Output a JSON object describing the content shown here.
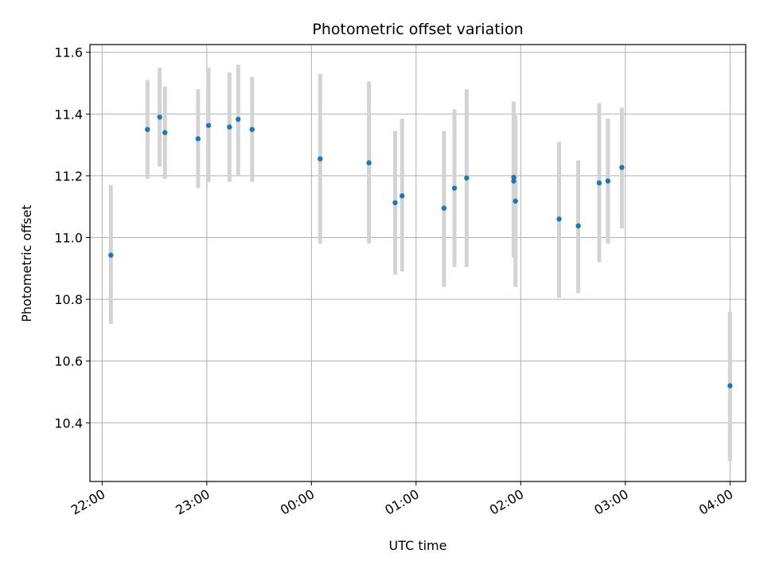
{
  "chart_data": {
    "type": "scatter",
    "title": "Photometric offset variation",
    "xlabel": "UTC time",
    "ylabel": "Photometric offset",
    "x_tick_labels": [
      "22:00",
      "23:00",
      "00:00",
      "01:00",
      "02:00",
      "03:00",
      "04:00"
    ],
    "xlim": [
      "21:53",
      "04:09"
    ],
    "ylim": [
      10.21,
      11.625
    ],
    "y_ticks": [
      "10.4",
      "10.6",
      "10.8",
      "11.0",
      "11.2",
      "11.4",
      "11.6"
    ],
    "grid": true,
    "marker_color": "#1f77b4",
    "errorbar_color": "#d3d3d3",
    "points": [
      {
        "t": "22:05",
        "y": 10.943,
        "lo": 10.72,
        "hi": 11.17
      },
      {
        "t": "22:26",
        "y": 11.35,
        "lo": 11.19,
        "hi": 11.51
      },
      {
        "t": "22:33",
        "y": 11.39,
        "lo": 11.23,
        "hi": 11.55
      },
      {
        "t": "22:36",
        "y": 11.34,
        "lo": 11.19,
        "hi": 11.49
      },
      {
        "t": "22:55",
        "y": 11.32,
        "lo": 11.16,
        "hi": 11.48
      },
      {
        "t": "23:01",
        "y": 11.363,
        "lo": 11.18,
        "hi": 11.55
      },
      {
        "t": "23:13",
        "y": 11.358,
        "lo": 11.18,
        "hi": 11.535
      },
      {
        "t": "23:18",
        "y": 11.383,
        "lo": 11.2,
        "hi": 11.56
      },
      {
        "t": "23:26",
        "y": 11.35,
        "lo": 11.18,
        "hi": 11.52
      },
      {
        "t": "00:05",
        "y": 11.255,
        "lo": 10.98,
        "hi": 11.53
      },
      {
        "t": "00:33",
        "y": 11.242,
        "lo": 10.98,
        "hi": 11.505
      },
      {
        "t": "00:48",
        "y": 11.113,
        "lo": 10.88,
        "hi": 11.345
      },
      {
        "t": "00:52",
        "y": 11.135,
        "lo": 10.89,
        "hi": 11.385
      },
      {
        "t": "01:16",
        "y": 11.095,
        "lo": 10.84,
        "hi": 11.345
      },
      {
        "t": "01:22",
        "y": 11.16,
        "lo": 10.905,
        "hi": 11.415
      },
      {
        "t": "01:29",
        "y": 11.193,
        "lo": 10.905,
        "hi": 11.48
      },
      {
        "t": "01:56",
        "y": 11.195,
        "lo": 10.945,
        "hi": 11.44
      },
      {
        "t": "01:56",
        "y": 11.183,
        "lo": 10.935,
        "hi": 11.43
      },
      {
        "t": "01:57",
        "y": 11.118,
        "lo": 10.84,
        "hi": 11.395
      },
      {
        "t": "02:22",
        "y": 11.06,
        "lo": 10.805,
        "hi": 11.31
      },
      {
        "t": "02:33",
        "y": 11.038,
        "lo": 10.82,
        "hi": 11.25
      },
      {
        "t": "02:45",
        "y": 11.177,
        "lo": 10.92,
        "hi": 11.435
      },
      {
        "t": "02:50",
        "y": 11.183,
        "lo": 10.98,
        "hi": 11.385
      },
      {
        "t": "02:58",
        "y": 11.227,
        "lo": 11.03,
        "hi": 11.42
      },
      {
        "t": "04:00",
        "y": 10.52,
        "lo": 10.275,
        "hi": 10.76
      }
    ]
  }
}
